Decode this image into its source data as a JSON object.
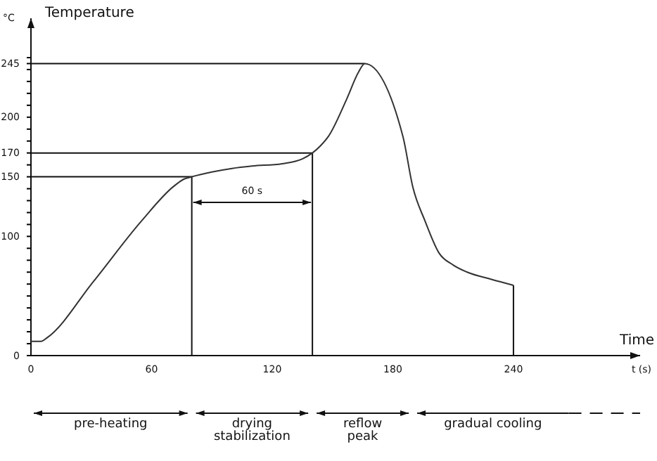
{
  "chart_data": {
    "type": "line",
    "xlabel": "Time",
    "ylabel": "Temperature",
    "xlim": [
      0,
      303
    ],
    "ylim": [
      0,
      283
    ],
    "xticks": [
      0,
      60,
      120,
      180,
      240
    ],
    "yticks": [
      0,
      {
        "value": 10,
        "label": null
      },
      {
        "value": 20,
        "label": null
      },
      {
        "value": 30,
        "label": null
      },
      {
        "value": 40,
        "label": null
      },
      {
        "value": 50,
        "label": null
      },
      {
        "value": 60,
        "label": null
      },
      {
        "value": 70,
        "label": null
      },
      {
        "value": 80,
        "label": null
      },
      {
        "value": 90,
        "label": null
      },
      100,
      {
        "value": 110,
        "label": null
      },
      {
        "value": 120,
        "label": null
      },
      {
        "value": 130,
        "label": null
      },
      {
        "value": 140,
        "label": null
      },
      150,
      {
        "value": 160,
        "label": null
      },
      170,
      {
        "value": 180,
        "label": null
      },
      {
        "value": 190,
        "label": null
      },
      200,
      {
        "value": 210,
        "label": null
      },
      {
        "value": 220,
        "label": null
      },
      {
        "value": 230,
        "label": null
      },
      {
        "value": 240,
        "label": null
      },
      245,
      {
        "value": 250,
        "label": null
      }
    ],
    "series": [
      {
        "color": "#333333",
        "x": [
          0,
          5,
          8,
          31,
          55,
          71,
          76,
          80,
          90,
          100,
          110,
          125,
          135,
          140,
          144,
          148,
          157,
          163,
          166,
          185,
          190,
          196,
          203,
          210,
          217,
          229,
          240
        ],
        "values": [
          12,
          12,
          15,
          62,
          113,
          142,
          148,
          150,
          154,
          157,
          159,
          161,
          165,
          170,
          176,
          184,
          215,
          238,
          245,
          184,
          141,
          113,
          86,
          76,
          70,
          64,
          59
        ]
      }
    ],
    "ref_lines": [
      {
        "axis": "y",
        "value": 245,
        "label": null
      },
      {
        "axis": "y",
        "value": 170,
        "label": null
      },
      {
        "axis": "y",
        "value": 150,
        "label": null
      },
      {
        "axis": "x",
        "value": 80,
        "label": null
      },
      {
        "axis": "x",
        "value": 140,
        "label": null
      },
      {
        "axis": "x",
        "value": 240,
        "label": null
      }
    ],
    "annotations": [
      "60 s",
      "°C",
      "t (s)",
      "pre-heating",
      "drying\nstabilization",
      "reflow\npeak",
      "gradual cooling"
    ],
    "grid": false,
    "marker": "none",
    "line_style": "solid"
  }
}
